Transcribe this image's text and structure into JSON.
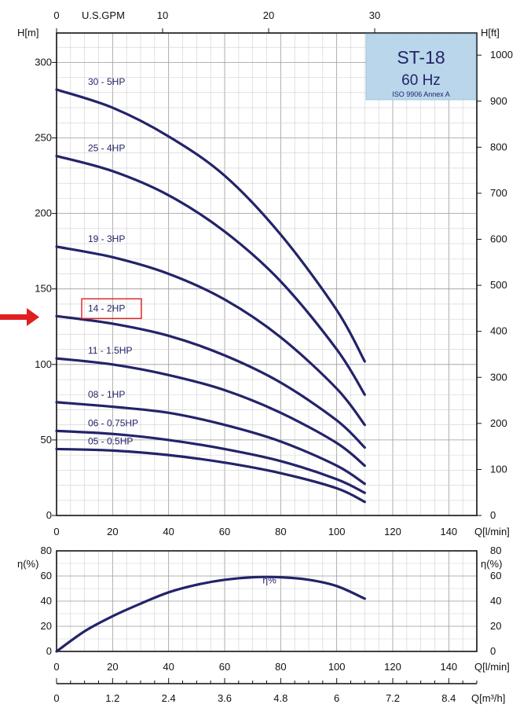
{
  "chart_data": [
    {
      "type": "line",
      "title_box": {
        "model": "ST-18",
        "freq": "60 Hz",
        "standard": "ISO 9906 Annex A"
      },
      "ylabel_left": "H[m]",
      "ylabel_right": "H[ft]",
      "xlabel_bottom": "Q[l/min]",
      "xlabel_top": "U.S.GPM",
      "xlim": [
        0,
        150
      ],
      "ylim": [
        0,
        330
      ],
      "x_ticks": [
        0,
        20,
        40,
        60,
        80,
        100,
        120,
        140
      ],
      "y_ticks": [
        0,
        50,
        100,
        150,
        200,
        250,
        300
      ],
      "y_ticks_ft": [
        0,
        100,
        200,
        300,
        400,
        500,
        600,
        700,
        800,
        900,
        1000
      ],
      "x_ticks_gpm": [
        0,
        10,
        20,
        30
      ],
      "grid": true,
      "highlighted_series": "14 - 2HP",
      "series": [
        {
          "name": "30 - 5HP",
          "x": [
            0,
            20,
            40,
            60,
            80,
            100,
            110
          ],
          "y": [
            282,
            270,
            251,
            225,
            186,
            136,
            102
          ]
        },
        {
          "name": "25 - 4HP",
          "x": [
            0,
            20,
            40,
            60,
            80,
            100,
            110
          ],
          "y": [
            238,
            228,
            212,
            188,
            155,
            110,
            80
          ]
        },
        {
          "name": "19 - 3HP",
          "x": [
            0,
            20,
            40,
            60,
            80,
            100,
            110
          ],
          "y": [
            178,
            171,
            160,
            143,
            118,
            84,
            60
          ]
        },
        {
          "name": "14 - 2HP",
          "x": [
            0,
            20,
            40,
            60,
            80,
            100,
            110
          ],
          "y": [
            132,
            127,
            119,
            106,
            88,
            63,
            45
          ]
        },
        {
          "name": "11 - 1.5HP",
          "x": [
            0,
            20,
            40,
            60,
            80,
            100,
            110
          ],
          "y": [
            104,
            100,
            93,
            83,
            68,
            48,
            33
          ]
        },
        {
          "name": "08 - 1HP",
          "x": [
            0,
            20,
            40,
            60,
            80,
            100,
            110
          ],
          "y": [
            75,
            72,
            68,
            60,
            49,
            33,
            21
          ]
        },
        {
          "name": "06 - 0.75HP",
          "x": [
            0,
            20,
            40,
            60,
            80,
            100,
            110
          ],
          "y": [
            56,
            54,
            50,
            44,
            36,
            24,
            15
          ]
        },
        {
          "name": "05 - 0.5HP",
          "x": [
            0,
            20,
            40,
            60,
            80,
            100,
            110
          ],
          "y": [
            44,
            43,
            40,
            35,
            28,
            18,
            9
          ]
        }
      ]
    },
    {
      "type": "line",
      "ylabel_left": "η(%)",
      "ylabel_right": "η(%)",
      "xlabel_bottom": "Q[l/min]",
      "xlabel_bottom2": "Q[m³/h]",
      "xlim": [
        0,
        150
      ],
      "ylim": [
        0,
        80
      ],
      "x_ticks": [
        0,
        20,
        40,
        60,
        80,
        100,
        120,
        140
      ],
      "y_ticks": [
        0,
        20,
        40,
        60,
        80
      ],
      "x_ticks_m3h": [
        "0",
        "1.2",
        "2.4",
        "3.6",
        "4.8",
        "6",
        "7.2",
        "8.4"
      ],
      "grid": true,
      "series": [
        {
          "name": "η%",
          "x": [
            0,
            10,
            20,
            30,
            40,
            50,
            60,
            70,
            80,
            90,
            100,
            110
          ],
          "y": [
            0,
            16,
            28,
            38,
            47,
            53,
            57,
            59,
            59,
            57,
            52,
            42
          ]
        }
      ]
    }
  ]
}
